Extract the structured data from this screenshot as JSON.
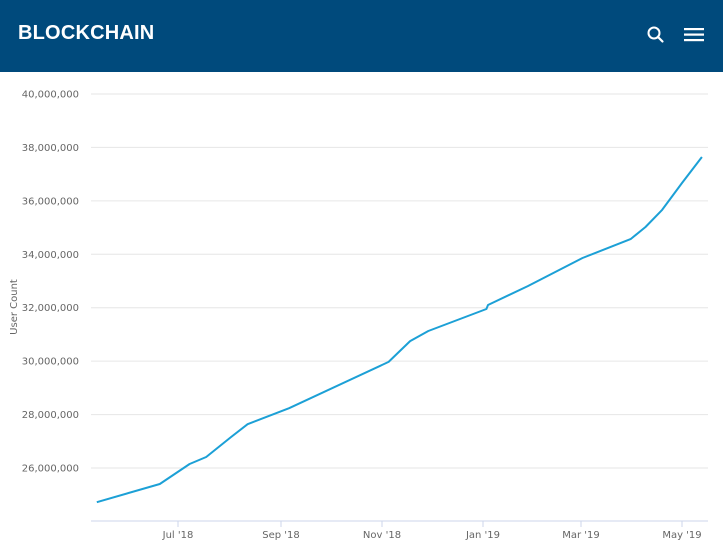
{
  "header": {
    "brand": "BLOCKCHAIN",
    "background": "#004a7c",
    "icons": [
      "search-icon",
      "hamburger-menu-icon"
    ]
  },
  "chart_data": {
    "type": "line",
    "title": "",
    "xlabel": "",
    "ylabel": "User Count",
    "ylim": [
      24000000,
      40000000
    ],
    "grid": true,
    "legend": "none",
    "line_color": "#1ca0d6",
    "y_ticks": [
      "26,000,000",
      "28,000,000",
      "30,000,000",
      "32,000,000",
      "34,000,000",
      "36,000,000",
      "38,000,000",
      "40,000,000"
    ],
    "x_ticks": [
      "Jul '18",
      "Sep '18",
      "Nov '18",
      "Jan '19",
      "Mar '19",
      "May '19"
    ],
    "series": [
      {
        "name": "User Count",
        "x": [
          "2018-05-13",
          "2018-06-20",
          "2018-07-08",
          "2018-07-18",
          "2018-08-02",
          "2018-08-12",
          "2018-09-06",
          "2018-11-05",
          "2018-11-18",
          "2018-11-29",
          "2019-01-03",
          "2019-01-04",
          "2019-01-28",
          "2019-03-02",
          "2019-03-31",
          "2019-04-09",
          "2019-04-19",
          "2019-05-01",
          "2019-05-13"
        ],
        "values": [
          24720000,
          25400000,
          26150000,
          26410000,
          27160000,
          27640000,
          28240000,
          29970000,
          30750000,
          31130000,
          31950000,
          32100000,
          32810000,
          33860000,
          34570000,
          35020000,
          35660000,
          36670000,
          37640000
        ]
      }
    ]
  }
}
